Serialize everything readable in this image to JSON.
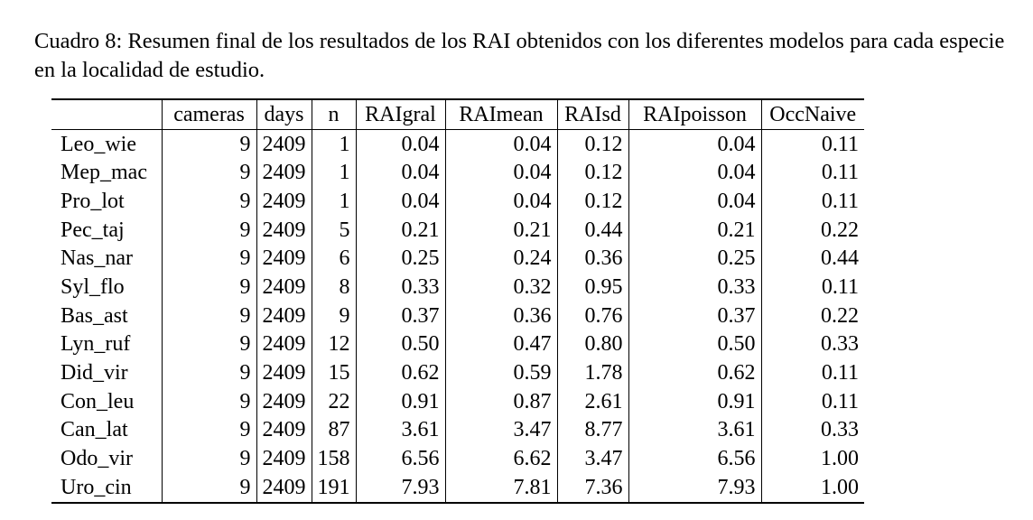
{
  "caption": {
    "label": "Cuadro 8:",
    "text": "Resumen final de los resultados de los RAI obtenidos con los diferentes modelos para cada especie en la localidad de estudio."
  },
  "table": {
    "headers": [
      "",
      "cameras",
      "days",
      "n",
      "RAIgral",
      "RAImean",
      "RAIsd",
      "RAIpoisson",
      "OccNaive"
    ],
    "rows": [
      [
        "Leo_wie",
        "9",
        "2409",
        "1",
        "0.04",
        "0.04",
        "0.12",
        "0.04",
        "0.11"
      ],
      [
        "Mep_mac",
        "9",
        "2409",
        "1",
        "0.04",
        "0.04",
        "0.12",
        "0.04",
        "0.11"
      ],
      [
        "Pro_lot",
        "9",
        "2409",
        "1",
        "0.04",
        "0.04",
        "0.12",
        "0.04",
        "0.11"
      ],
      [
        "Pec_taj",
        "9",
        "2409",
        "5",
        "0.21",
        "0.21",
        "0.44",
        "0.21",
        "0.22"
      ],
      [
        "Nas_nar",
        "9",
        "2409",
        "6",
        "0.25",
        "0.24",
        "0.36",
        "0.25",
        "0.44"
      ],
      [
        "Syl_flo",
        "9",
        "2409",
        "8",
        "0.33",
        "0.32",
        "0.95",
        "0.33",
        "0.11"
      ],
      [
        "Bas_ast",
        "9",
        "2409",
        "9",
        "0.37",
        "0.36",
        "0.76",
        "0.37",
        "0.22"
      ],
      [
        "Lyn_ruf",
        "9",
        "2409",
        "12",
        "0.50",
        "0.47",
        "0.80",
        "0.50",
        "0.33"
      ],
      [
        "Did_vir",
        "9",
        "2409",
        "15",
        "0.62",
        "0.59",
        "1.78",
        "0.62",
        "0.11"
      ],
      [
        "Con_leu",
        "9",
        "2409",
        "22",
        "0.91",
        "0.87",
        "2.61",
        "0.91",
        "0.11"
      ],
      [
        "Can_lat",
        "9",
        "2409",
        "87",
        "3.61",
        "3.47",
        "8.77",
        "3.61",
        "0.33"
      ],
      [
        "Odo_vir",
        "9",
        "2409",
        "158",
        "6.56",
        "6.62",
        "3.47",
        "6.56",
        "1.00"
      ],
      [
        "Uro_cin",
        "9",
        "2409",
        "191",
        "7.93",
        "7.81",
        "7.36",
        "7.93",
        "1.00"
      ]
    ]
  }
}
